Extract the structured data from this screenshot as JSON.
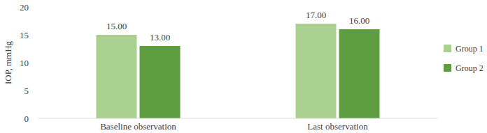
{
  "chart_data": {
    "type": "bar",
    "y_label": "IOP, mmHg",
    "categories": [
      "Baseline observation",
      "Last observation"
    ],
    "series": [
      {
        "name": "Group 1",
        "color": "#a9d08e",
        "values": [
          15,
          17
        ],
        "value_labels": [
          "15.00",
          "17.00"
        ]
      },
      {
        "name": "Group 2",
        "color": "#5f9e40",
        "values": [
          13,
          16
        ],
        "value_labels": [
          "13.00",
          "16.00"
        ]
      }
    ],
    "ylim": [
      0,
      20
    ],
    "yticks": [
      0,
      5,
      10,
      15,
      20
    ],
    "grid": false,
    "legend": "right",
    "data_labels": true
  }
}
